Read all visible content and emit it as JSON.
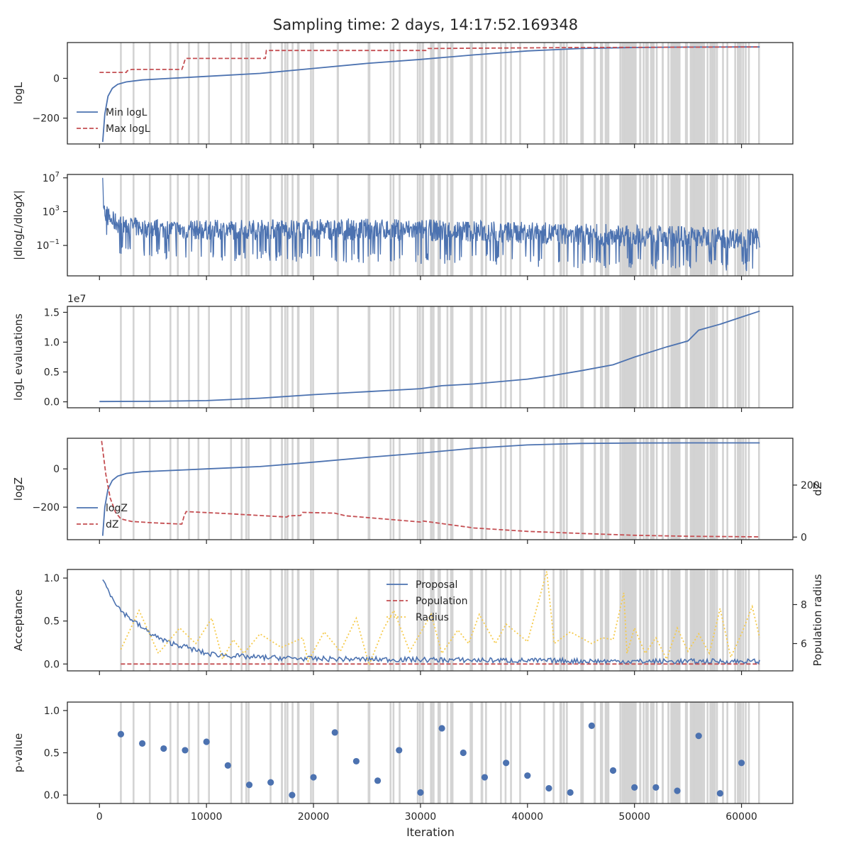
{
  "figure": {
    "title": "Sampling time: 2 days, 14:17:52.169348",
    "xlabel": "Iteration",
    "xticks": [
      0,
      10000,
      20000,
      30000,
      40000,
      50000,
      60000
    ],
    "xlim": [
      -3000,
      64800
    ]
  },
  "chart_data": [
    {
      "id": "logl",
      "type": "line",
      "ylabel": "logL",
      "ylim": [
        -330,
        180
      ],
      "yticks": [
        {
          "v": 0,
          "label": "0"
        },
        {
          "v": -200,
          "label": "−200"
        }
      ],
      "legend": {
        "placement": "lower-left",
        "entries": [
          "Min logL",
          "Max logL"
        ]
      },
      "series": [
        {
          "name": "Min logL",
          "color": "#4c72b0",
          "style": "solid",
          "x": [
            300,
            500,
            800,
            1200,
            1700,
            2500,
            4000,
            6000,
            10000,
            15000,
            20000,
            25000,
            30000,
            35000,
            40000,
            45000,
            50000,
            55000,
            60000,
            61700
          ],
          "y": [
            -320,
            -180,
            -90,
            -50,
            -30,
            -18,
            -8,
            -2,
            10,
            25,
            50,
            75,
            95,
            118,
            138,
            150,
            155,
            157,
            158,
            158
          ]
        },
        {
          "name": "Max logL",
          "color": "#c44e52",
          "style": "dashed",
          "x": [
            0,
            2400,
            2500,
            2600,
            3000,
            7700,
            7800,
            8000,
            8100,
            15500,
            15600,
            30500,
            30700,
            45000,
            61700
          ],
          "y": [
            30,
            30,
            30,
            38,
            45,
            45,
            60,
            95,
            100,
            100,
            140,
            140,
            150,
            155,
            158
          ]
        }
      ]
    },
    {
      "id": "dlogl",
      "type": "line",
      "ylabel": "|dlogL/dlogX|",
      "ylabel_parts": {
        "abs_open": "|",
        "num": "d",
        "log1": "log",
        "L": "L",
        "slash": "/d",
        "log2": "log",
        "X": "X",
        "abs_close": "|"
      },
      "yscale": "log",
      "ylim": [
        -4.6,
        7.4
      ],
      "yticks": [
        {
          "v": 7,
          "base": "10",
          "exp": "7"
        },
        {
          "v": 3,
          "base": "10",
          "exp": "3"
        },
        {
          "v": -1,
          "base": "10",
          "exp": "−1"
        }
      ],
      "series": [
        {
          "name": "",
          "color": "#4c72b0",
          "style": "noisy",
          "x": [
            300,
            500,
            1000,
            2000,
            4000,
            8000,
            15000,
            25000,
            35000,
            45000,
            55000,
            61700
          ],
          "upper": [
            7,
            4.2,
            3.2,
            2.6,
            2.2,
            2.0,
            2.1,
            2.2,
            2.0,
            1.6,
            1.3,
            1.0
          ],
          "lower": [
            3,
            0.8,
            -0.4,
            -1.0,
            -1.3,
            -1.6,
            -1.6,
            -1.8,
            -2.0,
            -2.4,
            -2.6,
            -2.8
          ]
        }
      ]
    },
    {
      "id": "nlike",
      "type": "line",
      "ylabel": "logL evaluations",
      "offset_label": "1e7",
      "ylim": [
        -0.1,
        1.6
      ],
      "yticks": [
        {
          "v": 0,
          "label": "0.0"
        },
        {
          "v": 0.5,
          "label": "0.5"
        },
        {
          "v": 1.0,
          "label": "1.0"
        },
        {
          "v": 1.5,
          "label": "1.5"
        }
      ],
      "series": [
        {
          "name": "",
          "color": "#4c72b0",
          "style": "solid",
          "x": [
            0,
            5000,
            10000,
            15000,
            20000,
            25000,
            30000,
            32000,
            35000,
            40000,
            42000,
            45000,
            48000,
            50000,
            53000,
            55000,
            56000,
            58000,
            60000,
            61700
          ],
          "y": [
            0.005,
            0.008,
            0.02,
            0.06,
            0.12,
            0.17,
            0.22,
            0.27,
            0.3,
            0.38,
            0.43,
            0.52,
            0.62,
            0.75,
            0.92,
            1.02,
            1.2,
            1.3,
            1.42,
            1.52
          ]
        }
      ]
    },
    {
      "id": "logz",
      "type": "line",
      "ylabel": "logZ",
      "ylabel_right": "dZ",
      "ylim": [
        -370,
        160
      ],
      "yticks": [
        {
          "v": 0,
          "label": "0"
        },
        {
          "v": -200,
          "label": "−200"
        }
      ],
      "ylim_right": [
        -10,
        380
      ],
      "yticks_right": [
        {
          "v": 0,
          "label": "0"
        },
        {
          "v": 200,
          "label": "200"
        }
      ],
      "legend": {
        "placement": "lower-left",
        "entries": [
          "logZ",
          "dZ"
        ]
      },
      "series": [
        {
          "name": "logZ",
          "color": "#4c72b0",
          "style": "solid",
          "axis": "left",
          "x": [
            300,
            500,
            800,
            1200,
            1700,
            2500,
            4000,
            6000,
            10000,
            15000,
            20000,
            25000,
            30000,
            35000,
            40000,
            45000,
            50000,
            55000,
            60000,
            61700
          ],
          "y": [
            -350,
            -200,
            -105,
            -60,
            -38,
            -24,
            -15,
            -10,
            0,
            12,
            35,
            60,
            82,
            108,
            125,
            133,
            135,
            136,
            136,
            136
          ]
        },
        {
          "name": "dZ",
          "color": "#c44e52",
          "style": "dashed",
          "axis": "right",
          "x": [
            200,
            600,
            1000,
            1500,
            2000,
            3000,
            5000,
            7600,
            7700,
            7900,
            8100,
            12000,
            17500,
            17700,
            18800,
            19000,
            22000,
            23000,
            25000,
            30000,
            30200,
            35000,
            40000,
            45000,
            50000,
            55000,
            61700
          ],
          "y": [
            370,
            240,
            150,
            95,
            70,
            60,
            55,
            50,
            50,
            80,
            98,
            90,
            77,
            82,
            83,
            95,
            92,
            82,
            75,
            58,
            62,
            35,
            22,
            14,
            7,
            3,
            1
          ]
        }
      ]
    },
    {
      "id": "acceptance",
      "type": "line",
      "ylabel": "Acceptance",
      "ylabel_right": "Population radius",
      "ylim": [
        -0.08,
        1.1
      ],
      "yticks": [
        {
          "v": 0,
          "label": "0.0"
        },
        {
          "v": 0.5,
          "label": "0.5"
        },
        {
          "v": 1.0,
          "label": "1.0"
        }
      ],
      "ylim_right": [
        4.6,
        9.8
      ],
      "yticks_right": [
        {
          "v": 6,
          "label": "6"
        },
        {
          "v": 8,
          "label": "8"
        }
      ],
      "legend": {
        "placement": "upper-center",
        "entries": [
          "Proposal",
          "Population",
          "Radius"
        ]
      },
      "series": [
        {
          "name": "Proposal",
          "color": "#4c72b0",
          "style": "solid",
          "axis": "left",
          "x": [
            300,
            1000,
            2000,
            3000,
            4000,
            5000,
            6000,
            8000,
            10000,
            14000,
            20000,
            30000,
            40000,
            50000,
            61700
          ],
          "y": [
            0.98,
            0.82,
            0.62,
            0.52,
            0.42,
            0.34,
            0.27,
            0.2,
            0.12,
            0.08,
            0.06,
            0.05,
            0.04,
            0.03,
            0.03
          ]
        },
        {
          "name": "Population",
          "color": "#c44e52",
          "style": "dashed",
          "axis": "left",
          "x": [
            2000,
            61700
          ],
          "y": [
            0.0,
            0.0
          ]
        },
        {
          "name": "Radius",
          "color": "#f6ca4a",
          "style": "dotted",
          "axis": "right",
          "x": [
            2000,
            3700,
            5500,
            7500,
            9000,
            10500,
            11500,
            12500,
            13500,
            15000,
            17000,
            19000,
            19500,
            21000,
            22500,
            24000,
            25200,
            26500,
            27500,
            29000,
            31000,
            32000,
            33500,
            34500,
            35500,
            37000,
            38000,
            40000,
            41800,
            42500,
            44000,
            46000,
            47000,
            48000,
            49000,
            49300,
            50000,
            51000,
            52000,
            53000,
            54000,
            55000,
            56000,
            57000,
            58000,
            59000,
            60000,
            61000,
            61700
          ],
          "y": [
            5.7,
            7.7,
            5.5,
            6.8,
            6.0,
            7.3,
            5.2,
            6.2,
            5.5,
            6.5,
            5.8,
            6.3,
            5.1,
            6.6,
            5.6,
            7.3,
            4.9,
            6.7,
            7.7,
            5.6,
            7.5,
            5.5,
            6.7,
            6.0,
            7.5,
            6.0,
            7.0,
            6.1,
            9.7,
            6.0,
            6.6,
            6.0,
            6.3,
            6.2,
            8.6,
            5.5,
            6.8,
            5.5,
            6.3,
            5.2,
            6.8,
            5.6,
            6.5,
            5.5,
            7.8,
            5.3,
            6.5,
            7.9,
            6.3
          ]
        }
      ]
    },
    {
      "id": "pvalue",
      "type": "scatter",
      "ylabel": "p-value",
      "ylim": [
        -0.1,
        1.1
      ],
      "yticks": [
        {
          "v": 0,
          "label": "0.0"
        },
        {
          "v": 0.5,
          "label": "0.5"
        },
        {
          "v": 1.0,
          "label": "1.0"
        }
      ],
      "series": [
        {
          "name": "",
          "color": "#4c72b0",
          "x": [
            2000,
            4000,
            6000,
            8000,
            10000,
            12000,
            14000,
            16000,
            18000,
            20000,
            22000,
            24000,
            26000,
            28000,
            30000,
            32000,
            34000,
            36000,
            38000,
            40000,
            42000,
            44000,
            46000,
            48000,
            50000,
            52000,
            54000,
            56000,
            58000,
            60000
          ],
          "y": [
            0.72,
            0.61,
            0.55,
            0.53,
            0.63,
            0.35,
            0.12,
            0.15,
            0.0,
            0.21,
            0.74,
            0.4,
            0.17,
            0.53,
            0.03,
            0.79,
            0.5,
            0.21,
            0.38,
            0.23,
            0.08,
            0.03,
            0.82,
            0.29,
            0.09,
            0.09,
            0.05,
            0.7,
            0.02,
            0.38
          ]
        }
      ]
    }
  ],
  "bands": {
    "color": "#d3d3d3",
    "seed": 7,
    "regions": [
      {
        "from": 2000,
        "to": 24000,
        "count": 24
      },
      {
        "from": 24000,
        "to": 45000,
        "count": 34
      },
      {
        "from": 45000,
        "to": 61700,
        "count": 60
      }
    ],
    "dense_spans": [
      [
        49000,
        50200
      ],
      [
        53500,
        54300
      ],
      [
        55300,
        56400
      ],
      [
        57000,
        57600
      ]
    ]
  }
}
